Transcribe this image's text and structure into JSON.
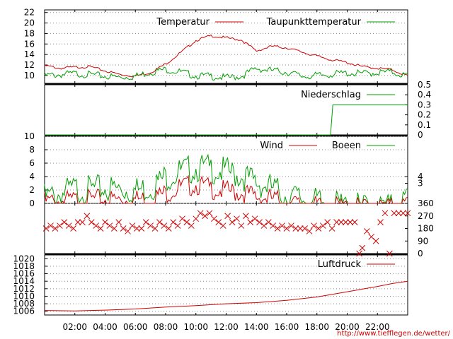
{
  "credit": "http://www.tiefflegen.de/wetter/",
  "x_axis": {
    "range_hours": [
      0,
      24
    ],
    "ticks": [
      2,
      4,
      6,
      8,
      10,
      12,
      14,
      16,
      18,
      20,
      22
    ],
    "tick_labels": [
      "02:00",
      "04:00",
      "06:00",
      "08:00",
      "10:00",
      "12:00",
      "14:00",
      "16:00",
      "18:00",
      "20:00",
      "22:00"
    ]
  },
  "colors": {
    "red": "#d00000",
    "green": "#00a000"
  },
  "chart_data": [
    {
      "type": "line",
      "panel": "temperature",
      "ylim": [
        8.5,
        22.5
      ],
      "y_ticks": [
        10,
        12,
        14,
        16,
        18,
        20,
        22
      ],
      "grid": true,
      "legend_position": "top-right",
      "series": [
        {
          "name": "Temperatur",
          "color": "#d00000",
          "x": [
            0,
            1,
            2,
            3,
            4,
            5,
            6,
            7,
            8,
            9,
            10,
            11,
            12,
            13,
            14,
            15,
            16,
            17,
            18,
            19,
            20,
            21,
            22,
            23,
            24
          ],
          "y": [
            12,
            11.5,
            11.7,
            11.8,
            11,
            10.3,
            10,
            10.7,
            12.3,
            14.5,
            16.8,
            17.7,
            17.3,
            16.9,
            14.8,
            15.7,
            15.4,
            14.6,
            13.8,
            13.1,
            12.6,
            11.8,
            11.5,
            11.2,
            10
          ]
        },
        {
          "name": "Taupunkttemperatur",
          "color": "#00a000",
          "x": [
            0,
            1,
            2,
            3,
            4,
            5,
            6,
            7,
            8,
            9,
            10,
            11,
            12,
            13,
            14,
            15,
            16,
            17,
            18,
            19,
            20,
            21,
            22,
            23,
            24
          ],
          "y": [
            10.3,
            10.5,
            10.7,
            10.5,
            10.2,
            10,
            10.2,
            11,
            11.5,
            11,
            10.3,
            10.2,
            9.9,
            10.2,
            11.7,
            11.3,
            11,
            10.2,
            10.3,
            10.6,
            10.8,
            10.7,
            10.9,
            11,
            10.2
          ]
        }
      ]
    },
    {
      "type": "line",
      "panel": "precipitation",
      "ylim": [
        0,
        0.5
      ],
      "y_ticks": [
        0,
        0.1,
        0.2,
        0.3,
        0.4,
        0.5
      ],
      "grid": false,
      "legend_position": "top-right",
      "series": [
        {
          "name": "Niederschlag",
          "color": "#00a000",
          "x": [
            0,
            18.9,
            18.9,
            19.05,
            24
          ],
          "y": [
            0,
            0,
            0,
            0.3,
            0.3
          ]
        }
      ]
    },
    {
      "type": "line",
      "panel": "wind",
      "ylim": [
        0,
        10
      ],
      "y_ticks": [
        0,
        2,
        4,
        6,
        8,
        10
      ],
      "y_ticks_right": [
        3,
        4
      ],
      "grid": true,
      "legend_position": "top-right",
      "series": [
        {
          "name": "Wind",
          "color": "#d00000",
          "x": [
            0,
            1,
            2,
            3,
            4,
            5,
            6,
            7,
            8,
            9,
            10,
            11,
            12,
            13,
            14,
            15,
            16,
            17,
            18,
            19,
            20,
            21,
            22,
            23,
            24
          ],
          "y": [
            1,
            1.1,
            1.2,
            1.3,
            1.4,
            1.3,
            1.4,
            1.5,
            2.3,
            3.2,
            3.6,
            3,
            2.6,
            2.4,
            1.8,
            1.5,
            0.8,
            0.5,
            0.3,
            0.2,
            0.2,
            0.1,
            0.1,
            0.2,
            0.6
          ]
        },
        {
          "name": "Boeen",
          "color": "#00a000",
          "x": [
            0,
            1,
            2,
            3,
            4,
            5,
            6,
            7,
            8,
            9,
            10,
            11,
            12,
            13,
            14,
            15,
            16,
            17,
            18,
            19,
            20,
            21,
            22,
            23,
            24
          ],
          "y": [
            1.9,
            2.5,
            3.2,
            3.1,
            3.3,
            3.2,
            3,
            3.5,
            5,
            5.8,
            6.4,
            6.2,
            5.8,
            5.2,
            4.2,
            3.4,
            2.2,
            1.8,
            1.2,
            0.9,
            0.7,
            0.5,
            0.4,
            0.6,
            1.8
          ]
        }
      ]
    },
    {
      "type": "scatter",
      "panel": "wind_direction",
      "ylim": [
        0,
        360
      ],
      "y_ticks_right": [
        0,
        90,
        180,
        270,
        360
      ],
      "marker": "x",
      "color": "#d00000",
      "points": [
        [
          0.1,
          180
        ],
        [
          0.4,
          200
        ],
        [
          0.7,
          180
        ],
        [
          1,
          200
        ],
        [
          1.3,
          225
        ],
        [
          1.6,
          200
        ],
        [
          1.9,
          180
        ],
        [
          2.2,
          225
        ],
        [
          2.5,
          225
        ],
        [
          2.8,
          270
        ],
        [
          3.1,
          225
        ],
        [
          3.4,
          200
        ],
        [
          3.7,
          180
        ],
        [
          4,
          225
        ],
        [
          4.3,
          200
        ],
        [
          4.6,
          180
        ],
        [
          4.9,
          225
        ],
        [
          5.2,
          180
        ],
        [
          5.5,
          160
        ],
        [
          5.8,
          200
        ],
        [
          6.1,
          180
        ],
        [
          6.4,
          180
        ],
        [
          6.7,
          225
        ],
        [
          7,
          200
        ],
        [
          7.3,
          180
        ],
        [
          7.6,
          225
        ],
        [
          7.9,
          200
        ],
        [
          8.2,
          180
        ],
        [
          8.5,
          225
        ],
        [
          8.8,
          200
        ],
        [
          9.1,
          250
        ],
        [
          9.4,
          225
        ],
        [
          9.7,
          200
        ],
        [
          10,
          250
        ],
        [
          10.3,
          290
        ],
        [
          10.6,
          270
        ],
        [
          10.9,
          290
        ],
        [
          11.2,
          250
        ],
        [
          11.5,
          225
        ],
        [
          11.8,
          200
        ],
        [
          12.1,
          270
        ],
        [
          12.4,
          225
        ],
        [
          12.7,
          250
        ],
        [
          13,
          200
        ],
        [
          13.3,
          270
        ],
        [
          13.6,
          225
        ],
        [
          13.9,
          250
        ],
        [
          14.2,
          225
        ],
        [
          14.5,
          200
        ],
        [
          14.8,
          225
        ],
        [
          15.1,
          200
        ],
        [
          15.4,
          180
        ],
        [
          15.7,
          200
        ],
        [
          16,
          180
        ],
        [
          16.3,
          200
        ],
        [
          16.6,
          180
        ],
        [
          16.9,
          180
        ],
        [
          17.2,
          180
        ],
        [
          17.5,
          160
        ],
        [
          17.8,
          200
        ],
        [
          18.1,
          180
        ],
        [
          18.4,
          200
        ],
        [
          18.7,
          225
        ],
        [
          19,
          180
        ],
        [
          19.3,
          225
        ],
        [
          19.6,
          225
        ],
        [
          19.9,
          225
        ],
        [
          20.2,
          225
        ],
        [
          20.5,
          225
        ],
        [
          20.8,
          0
        ],
        [
          21,
          40
        ],
        [
          21.3,
          160
        ],
        [
          21.6,
          120
        ],
        [
          21.9,
          90
        ],
        [
          22.2,
          225
        ],
        [
          22.5,
          290
        ],
        [
          22.8,
          0
        ],
        [
          23.1,
          290
        ],
        [
          23.4,
          290
        ],
        [
          23.7,
          290
        ],
        [
          24,
          290
        ]
      ]
    },
    {
      "type": "line",
      "panel": "pressure",
      "ylim": [
        1005,
        1021
      ],
      "y_ticks": [
        1006,
        1008,
        1010,
        1012,
        1014,
        1016,
        1018,
        1020
      ],
      "grid": true,
      "legend_position": "top-right",
      "series": [
        {
          "name": "Luftdruck",
          "color": "#d00000",
          "x": [
            0,
            2,
            4,
            6,
            8,
            10,
            12,
            14,
            16,
            18,
            20,
            22,
            23,
            24
          ],
          "y": [
            1006.2,
            1006.1,
            1006.3,
            1006.6,
            1007.1,
            1007.5,
            1008,
            1008.3,
            1008.9,
            1009.8,
            1011.2,
            1012.6,
            1013.4,
            1014
          ]
        }
      ]
    }
  ]
}
